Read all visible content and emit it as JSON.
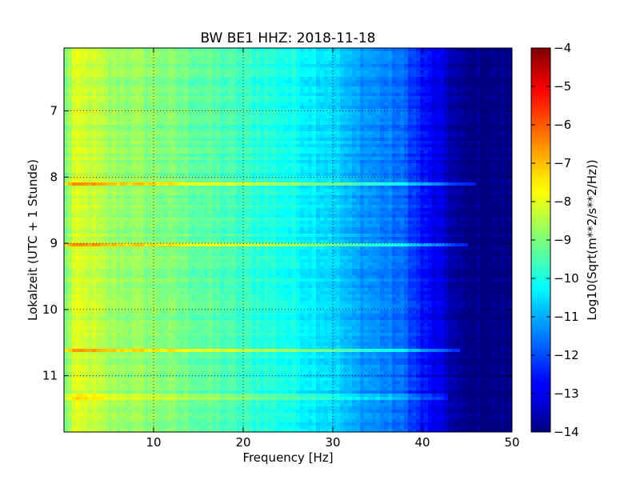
{
  "chart_data": {
    "type": "heatmap",
    "title": "BW BE1 HHZ: 2018-11-18",
    "xlabel": "Frequency [Hz]",
    "ylabel": "Lokalzeit (UTC + 1 Stunde)",
    "xlim": [
      0,
      50
    ],
    "ylim": [
      6.05,
      11.85
    ],
    "x_ticks": [
      10,
      20,
      30,
      40,
      50
    ],
    "x_tick_labels": [
      "10",
      "20",
      "30",
      "40",
      "50"
    ],
    "y_ticks": [
      7,
      8,
      9,
      10,
      11
    ],
    "y_tick_labels": [
      "7",
      "8",
      "9",
      "10",
      "11"
    ],
    "y_inverted": true,
    "grid": true,
    "colormap": "jet",
    "colorbar": {
      "label": "Log10(Sqrt(m**2/s**2/Hz))",
      "min": -14,
      "max": -4,
      "ticks": [
        -4,
        -5,
        -6,
        -7,
        -8,
        -9,
        -10,
        -11,
        -12,
        -13,
        -14
      ],
      "tick_labels": [
        "−4",
        "−5",
        "−6",
        "−7",
        "−8",
        "−9",
        "−10",
        "−11",
        "−12",
        "−13",
        "−14"
      ]
    },
    "frequency_profile": {
      "frequency_hz": [
        0,
        1,
        3,
        5,
        10,
        15,
        20,
        25,
        30,
        32,
        35,
        38,
        40,
        42,
        44,
        45,
        50
      ],
      "log10_amplitude": [
        -9.3,
        -8.2,
        -8.3,
        -8.7,
        -8.9,
        -9.3,
        -9.7,
        -10.1,
        -10.6,
        -11.1,
        -11.4,
        -11.8,
        -12.6,
        -13.1,
        -13.8,
        -14,
        -14
      ]
    },
    "bright_bands": [
      {
        "time": 8.1,
        "max_frequency_hz": 46,
        "boost": 1.6
      },
      {
        "time": 9.03,
        "max_frequency_hz": 45,
        "boost": 1.8
      },
      {
        "time": 10.62,
        "max_frequency_hz": 44,
        "boost": 1.4
      },
      {
        "time": 11.32,
        "max_frequency_hz": 43,
        "boost": 1.2
      }
    ]
  }
}
